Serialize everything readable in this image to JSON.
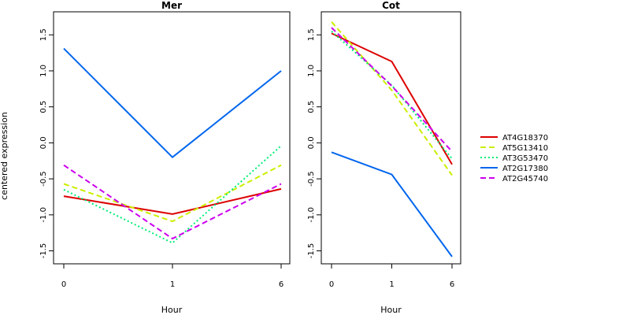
{
  "chart_data": {
    "type": "line",
    "ylabel": "centered expression",
    "xlabel": "Hour",
    "x_ticks": [
      "0",
      "1",
      "6"
    ],
    "y_ticks": [
      "-1.5",
      "-1.0",
      "-0.5",
      "0.0",
      "0.5",
      "1.0",
      "1.5"
    ],
    "y_tick_values": [
      -1.5,
      -1.0,
      -0.5,
      0.0,
      0.5,
      1.0,
      1.5
    ],
    "ylim": [
      -1.68,
      1.82
    ],
    "grid": false,
    "legend_position": "right",
    "series_styles": [
      {
        "name": "AT4G18370",
        "color": "#dd0000",
        "dash": "solid"
      },
      {
        "name": "AT5G13410",
        "color": "#ccee00",
        "dash": "dashed"
      },
      {
        "name": "AT3G53470",
        "color": "#00ee77",
        "dash": "dotted"
      },
      {
        "name": "AT2G17380",
        "color": "#0066ee",
        "dash": "solid"
      },
      {
        "name": "AT2G45740",
        "color": "#cc00ee",
        "dash": "dashed"
      }
    ],
    "panels": [
      {
        "title": "Mer",
        "x": [
          "0",
          "1",
          "6"
        ],
        "series": [
          {
            "name": "AT4G18370",
            "values": [
              -0.74,
              -0.99,
              -0.64
            ]
          },
          {
            "name": "AT5G13410",
            "values": [
              -0.57,
              -1.09,
              -0.31
            ]
          },
          {
            "name": "AT3G53470",
            "values": [
              -0.65,
              -1.39,
              -0.04
            ]
          },
          {
            "name": "AT2G17380",
            "values": [
              1.31,
              -0.2,
              1.0
            ]
          },
          {
            "name": "AT2G45740",
            "values": [
              -0.31,
              -1.33,
              -0.57
            ]
          }
        ]
      },
      {
        "title": "Cot",
        "x": [
          "0",
          "1",
          "6"
        ],
        "series": [
          {
            "name": "AT4G18370",
            "values": [
              1.52,
              1.13,
              -0.3
            ]
          },
          {
            "name": "AT5G13410",
            "values": [
              1.68,
              0.73,
              -0.45
            ]
          },
          {
            "name": "AT3G53470",
            "values": [
              1.55,
              0.8,
              -0.22
            ]
          },
          {
            "name": "AT2G17380",
            "values": [
              -0.13,
              -0.44,
              -1.58
            ]
          },
          {
            "name": "AT2G45740",
            "values": [
              1.6,
              0.79,
              -0.12
            ]
          }
        ]
      }
    ]
  }
}
